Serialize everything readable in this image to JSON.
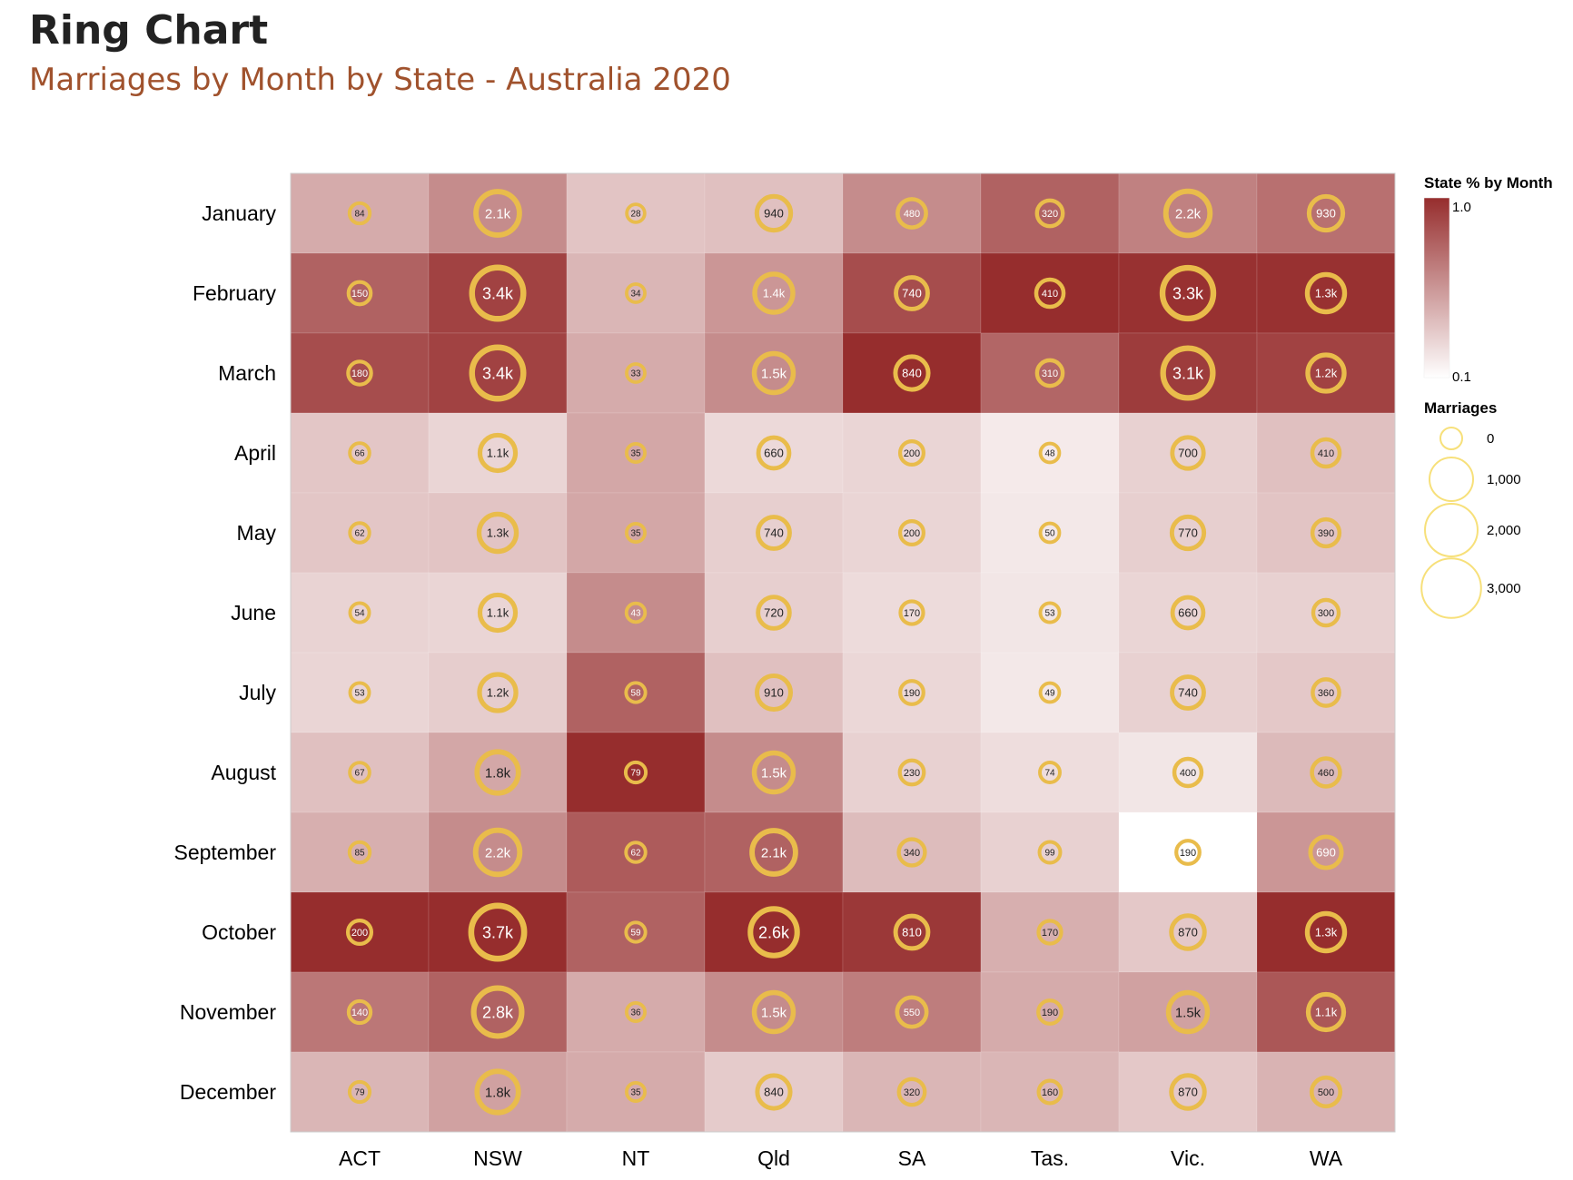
{
  "title": "Ring Chart",
  "subtitle": "Marriages by Month by State - Australia 2020",
  "colors": {
    "low": "#ffffff",
    "high": "#962d2d",
    "ring": "#e9bc4b",
    "ring_legend": "#f7e07a"
  },
  "chart_data": {
    "type": "heatmap",
    "categories": [
      "ACT",
      "NSW",
      "NT",
      "Qld",
      "SA",
      "Tas.",
      "Vic.",
      "WA"
    ],
    "months": [
      "January",
      "February",
      "March",
      "April",
      "May",
      "June",
      "July",
      "August",
      "September",
      "October",
      "November",
      "December"
    ],
    "marriages": [
      [
        84,
        2100,
        28,
        940,
        480,
        320,
        2200,
        930
      ],
      [
        150,
        3400,
        34,
        1400,
        740,
        410,
        3300,
        1300
      ],
      [
        180,
        3400,
        33,
        1500,
        840,
        310,
        3100,
        1200
      ],
      [
        66,
        1100,
        35,
        660,
        200,
        48,
        700,
        410
      ],
      [
        62,
        1300,
        35,
        740,
        200,
        50,
        770,
        390
      ],
      [
        54,
        1100,
        43,
        720,
        170,
        53,
        660,
        300
      ],
      [
        53,
        1200,
        58,
        910,
        190,
        49,
        740,
        360
      ],
      [
        67,
        1800,
        79,
        1500,
        230,
        74,
        400,
        460
      ],
      [
        85,
        2200,
        62,
        2100,
        340,
        99,
        190,
        690
      ],
      [
        200,
        3700,
        59,
        2600,
        810,
        170,
        870,
        1300
      ],
      [
        140,
        2800,
        36,
        1500,
        550,
        190,
        1500,
        1100
      ],
      [
        79,
        1800,
        35,
        840,
        320,
        160,
        870,
        500
      ]
    ],
    "labels": [
      [
        "84",
        "2.1k",
        "28",
        "940",
        "480",
        "320",
        "2.2k",
        "930"
      ],
      [
        "150",
        "3.4k",
        "34",
        "1.4k",
        "740",
        "410",
        "3.3k",
        "1.3k"
      ],
      [
        "180",
        "3.4k",
        "33",
        "1.5k",
        "840",
        "310",
        "3.1k",
        "1.2k"
      ],
      [
        "66",
        "1.1k",
        "35",
        "660",
        "200",
        "48",
        "700",
        "410"
      ],
      [
        "62",
        "1.3k",
        "35",
        "740",
        "200",
        "50",
        "770",
        "390"
      ],
      [
        "54",
        "1.1k",
        "43",
        "720",
        "170",
        "53",
        "660",
        "300"
      ],
      [
        "53",
        "1.2k",
        "58",
        "910",
        "190",
        "49",
        "740",
        "360"
      ],
      [
        "67",
        "1.8k",
        "79",
        "1.5k",
        "230",
        "74",
        "400",
        "460"
      ],
      [
        "85",
        "2.2k",
        "62",
        "2.1k",
        "340",
        "99",
        "190",
        "690"
      ],
      [
        "200",
        "3.7k",
        "59",
        "2.6k",
        "810",
        "170",
        "870",
        "1.3k"
      ],
      [
        "140",
        "2.8k",
        "36",
        "1.5k",
        "550",
        "190",
        "1.5k",
        "1.1k"
      ],
      [
        "79",
        "1.8k",
        "35",
        "840",
        "320",
        "160",
        "870",
        "500"
      ]
    ],
    "state_pct": [
      [
        0.4,
        0.55,
        0.28,
        0.3,
        0.55,
        0.75,
        0.6,
        0.68
      ],
      [
        0.75,
        0.9,
        0.35,
        0.5,
        0.85,
        1.0,
        0.98,
        0.98
      ],
      [
        0.85,
        0.9,
        0.4,
        0.55,
        1.0,
        0.73,
        0.93,
        0.9
      ],
      [
        0.27,
        0.2,
        0.42,
        0.18,
        0.2,
        0.1,
        0.22,
        0.3
      ],
      [
        0.27,
        0.28,
        0.42,
        0.23,
        0.2,
        0.11,
        0.23,
        0.28
      ],
      [
        0.21,
        0.2,
        0.55,
        0.23,
        0.17,
        0.12,
        0.2,
        0.22
      ],
      [
        0.2,
        0.24,
        0.75,
        0.3,
        0.19,
        0.11,
        0.22,
        0.26
      ],
      [
        0.3,
        0.42,
        1.0,
        0.55,
        0.22,
        0.16,
        0.12,
        0.33
      ],
      [
        0.38,
        0.55,
        0.78,
        0.75,
        0.32,
        0.22,
        0.0,
        0.5
      ],
      [
        1.0,
        1.0,
        0.75,
        1.0,
        0.95,
        0.38,
        0.26,
        1.0
      ],
      [
        0.65,
        0.75,
        0.4,
        0.55,
        0.62,
        0.4,
        0.45,
        0.8
      ],
      [
        0.35,
        0.45,
        0.4,
        0.25,
        0.35,
        0.35,
        0.26,
        0.36
      ]
    ],
    "color_legend": {
      "title": "State % by Month",
      "max_label": "1.0",
      "min_label": "0.1",
      "domain": [
        0.1,
        1.0
      ]
    },
    "size_legend": {
      "title": "Marriages",
      "values": [
        0,
        1000,
        2000,
        3000
      ],
      "labels": [
        "0",
        "1,000",
        "2,000",
        "3,000"
      ]
    }
  }
}
